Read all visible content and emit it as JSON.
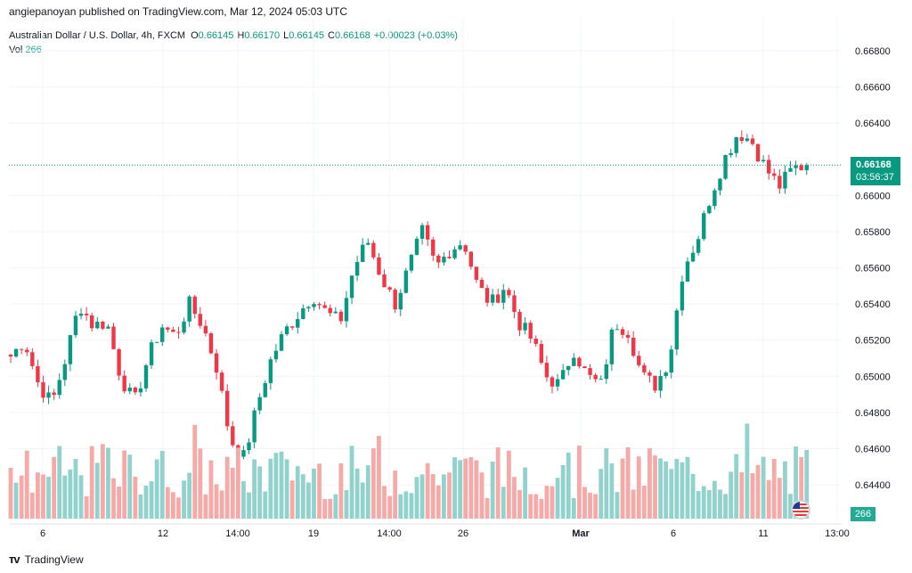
{
  "header": {
    "published": "angiepanoyan published on TradingView.com, Mar 12, 2024 05:03 UTC"
  },
  "legend": {
    "symbol": "Australian Dollar / U.S. Dollar, 4h, FXCM",
    "o_label": "O",
    "o_value": "0.66145",
    "h_label": "H",
    "h_value": "0.66170",
    "l_label": "L",
    "l_value": "0.66145",
    "c_label": "C",
    "c_value": "0.66168",
    "change": "+0.00023 (+0.03%)",
    "vol_label": "Vol",
    "vol_value": "266"
  },
  "price_tag": {
    "price": "0.66168",
    "countdown": "03:56:37"
  },
  "vol_tag": {
    "value": "266"
  },
  "footer": {
    "brand": "TradingView"
  },
  "colors": {
    "up": "#089981",
    "down": "#f23645",
    "vol_up": "#92d2cc",
    "vol_down": "#f7a9a7",
    "grid": "#f0f3fa"
  },
  "chart_data": {
    "type": "candlestick",
    "symbol": "AUDUSD",
    "timeframe": "4h",
    "y_ticks": [
      0.644,
      0.646,
      0.648,
      0.65,
      0.652,
      0.654,
      0.656,
      0.658,
      0.66,
      0.664,
      0.666,
      0.668
    ],
    "x_ticks": [
      "6",
      "12",
      "14:00",
      "19",
      "14:00",
      "26",
      "Mar",
      "6",
      "11",
      "13:00"
    ],
    "ylim": [
      0.6426,
      0.6693
    ],
    "current_price": 0.66168,
    "close_waypoints": [
      0.6511,
      0.652,
      0.6496,
      0.6485,
      0.651,
      0.654,
      0.6528,
      0.653,
      0.65,
      0.6485,
      0.651,
      0.6528,
      0.6522,
      0.654,
      0.6528,
      0.6505,
      0.6465,
      0.6455,
      0.6485,
      0.651,
      0.6525,
      0.6535,
      0.6545,
      0.6535,
      0.653,
      0.656,
      0.6575,
      0.6555,
      0.654,
      0.656,
      0.658,
      0.656,
      0.657,
      0.6575,
      0.655,
      0.654,
      0.655,
      0.653,
      0.652,
      0.65,
      0.6495,
      0.6515,
      0.65,
      0.6495,
      0.653,
      0.6525,
      0.65,
      0.6495,
      0.651,
      0.656,
      0.6575,
      0.66,
      0.662,
      0.6635,
      0.663,
      0.6615,
      0.6605,
      0.6615,
      0.66168
    ]
  }
}
